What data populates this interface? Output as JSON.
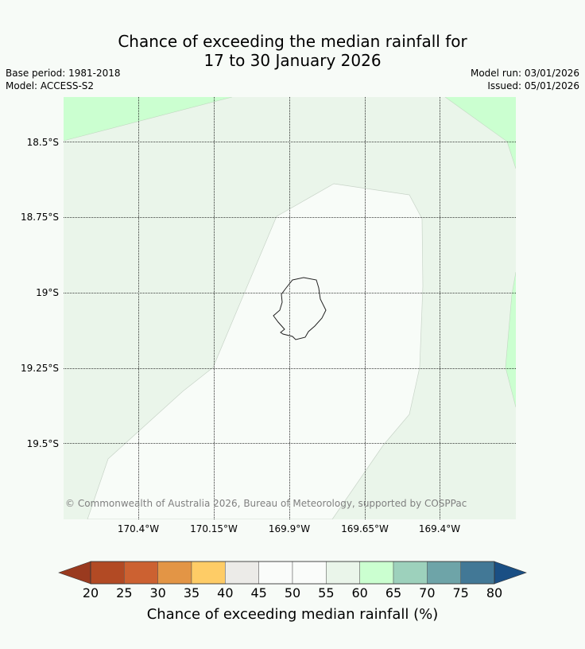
{
  "title": {
    "line1": "Chance of exceeding the median rainfall for",
    "line2": "17 to 30 January 2026"
  },
  "meta": {
    "base_period": "Base period: 1981-2018",
    "model": "Model: ACCESS-S2",
    "model_run": "Model run: 03/01/2026",
    "issued": "Issued: 05/01/2026"
  },
  "map": {
    "lat_labels": [
      "18.5°S",
      "18.75°S",
      "19°S",
      "19.25°S",
      "19.5°S"
    ],
    "lon_labels": [
      "170.4°W",
      "170.15°W",
      "169.9°W",
      "169.65°W",
      "169.4°W"
    ],
    "copyright": "© Commonwealth of Australia 2026, Bureau of Meteorology, supported by COSPPac",
    "region_colors": {
      "band_60_65": "#cbffd0",
      "band_55_60": "#eaf5ea",
      "band_45_55": "#f8fcf8",
      "coastline": "#222222"
    }
  },
  "colorbar": {
    "ticks": [
      "20",
      "25",
      "30",
      "35",
      "40",
      "45",
      "50",
      "55",
      "60",
      "65",
      "70",
      "75",
      "80"
    ],
    "colors": [
      "#b24a24",
      "#cc6131",
      "#e39545",
      "#fecc66",
      "#ecebe8",
      "#fafcfa",
      "#fafcfa",
      "#eaf5ea",
      "#cbffd0",
      "#9dd1bc",
      "#6ea4a8",
      "#427896"
    ],
    "under_color": "#9a3a1f",
    "over_color": "#1a4f84",
    "label": "Chance of exceeding median rainfall (%)"
  }
}
